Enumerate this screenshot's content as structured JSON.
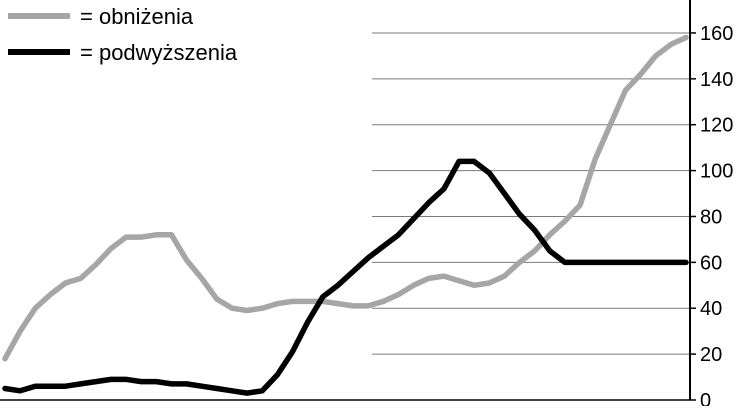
{
  "chart_data": {
    "type": "line",
    "title": "",
    "xlabel": "",
    "ylabel": "",
    "ylim": [
      0,
      170
    ],
    "y_ticks": [
      0,
      20,
      40,
      60,
      80,
      100,
      120,
      140,
      160
    ],
    "y_axis_side": "right",
    "grid": "horizontal",
    "legend_placement": "top-left",
    "x": [
      0,
      1,
      2,
      3,
      4,
      5,
      6,
      7,
      8,
      9,
      10,
      11,
      12,
      13,
      14,
      15,
      16,
      17,
      18,
      19,
      20,
      21,
      22,
      23,
      24,
      25,
      26,
      27,
      28,
      29,
      30,
      31,
      32,
      33,
      34,
      35,
      36,
      37,
      38,
      39,
      40,
      41,
      42,
      43,
      44,
      45
    ],
    "series": [
      {
        "name": "= obniżenia",
        "color": "#a6a6a6",
        "values": [
          18,
          30,
          40,
          46,
          51,
          53,
          59,
          66,
          71,
          71,
          72,
          72,
          61,
          53,
          44,
          40,
          39,
          40,
          42,
          43,
          43,
          43,
          42,
          41,
          41,
          43,
          46,
          50,
          53,
          54,
          52,
          50,
          51,
          54,
          60,
          65,
          72,
          78,
          85,
          105,
          120,
          135,
          142,
          150,
          155,
          158
        ]
      },
      {
        "name": "= podwyższenia",
        "color": "#000000",
        "values": [
          5,
          4,
          6,
          6,
          6,
          7,
          8,
          9,
          9,
          8,
          8,
          7,
          7,
          6,
          5,
          4,
          3,
          4,
          11,
          21,
          34,
          45,
          50,
          56,
          62,
          67,
          72,
          79,
          86,
          92,
          104,
          104,
          99,
          90,
          81,
          74,
          65,
          60,
          60,
          60,
          60,
          60,
          60,
          60,
          60,
          60
        ]
      }
    ]
  }
}
